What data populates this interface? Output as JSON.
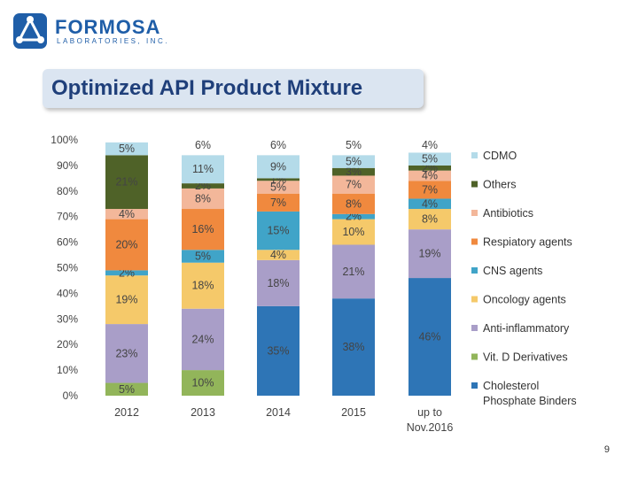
{
  "header": {
    "brand": "FORMOSA",
    "brand_sub": "LABORATORIES, INC.",
    "title": "Optimized API Product Mixture"
  },
  "page_number": "9",
  "colors": {
    "Cholesterol Phosphate Binders": "#2e75b6",
    "Vit. D Derivatives": "#92b55a",
    "Anti-inflammatory": "#a99ec8",
    "Oncology agents": "#f5c96a",
    "CNS agents": "#40a4c8",
    "Respiatory agents": "#f0893e",
    "Antibiotics": "#f3b79a",
    "Others": "#4f6228",
    "CDMO": "#b4dbe9"
  },
  "chart_data": {
    "type": "bar",
    "stacked": true,
    "categories": [
      "2012",
      "2013",
      "2014",
      "2015",
      "up to Nov.2016"
    ],
    "yticks": [
      "0%",
      "10%",
      "20%",
      "30%",
      "40%",
      "50%",
      "60%",
      "70%",
      "80%",
      "90%",
      "100%"
    ],
    "ylim": [
      0,
      100
    ],
    "legend_position": "right",
    "series": [
      {
        "name": "Cholesterol Phosphate Binders",
        "values": [
          0,
          0,
          35,
          38,
          46
        ],
        "labels": [
          "",
          "",
          "35%",
          "38%",
          "46%"
        ]
      },
      {
        "name": "Vit. D Derivatives",
        "values": [
          5,
          10,
          0,
          0,
          0
        ],
        "labels": [
          "5%",
          "10%",
          "",
          "",
          ""
        ]
      },
      {
        "name": "Anti-inflammatory",
        "values": [
          23,
          24,
          18,
          21,
          19
        ],
        "labels": [
          "23%",
          "24%",
          "18%",
          "21%",
          "19%"
        ]
      },
      {
        "name": "Oncology agents",
        "values": [
          19,
          18,
          4,
          10,
          8
        ],
        "labels": [
          "19%",
          "18%",
          "4%",
          "10%",
          "8%"
        ]
      },
      {
        "name": "CNS agents",
        "values": [
          2,
          5,
          15,
          2,
          4
        ],
        "labels": [
          "2%",
          "5%",
          "15%",
          "2%",
          "4%"
        ]
      },
      {
        "name": "Respiatory agents",
        "values": [
          20,
          16,
          7,
          8,
          7
        ],
        "labels": [
          "20%",
          "16%",
          "7%",
          "8%",
          "7%"
        ]
      },
      {
        "name": "Antibiotics",
        "values": [
          4,
          8,
          5,
          7,
          4
        ],
        "labels": [
          "4%",
          "8%",
          "5%",
          "7%",
          "4%"
        ]
      },
      {
        "name": "Others",
        "values": [
          21,
          2,
          1,
          3,
          2
        ],
        "labels": [
          "21%",
          "2%",
          "1%",
          "3%",
          "2%"
        ]
      },
      {
        "name": "CDMO",
        "values": [
          5,
          11,
          9,
          5,
          5
        ],
        "labels": [
          "5%",
          "11%",
          "9%",
          "5%",
          "5%"
        ]
      }
    ],
    "top_labels": [
      "",
      "6%",
      "6%",
      "5%",
      "4%"
    ]
  }
}
